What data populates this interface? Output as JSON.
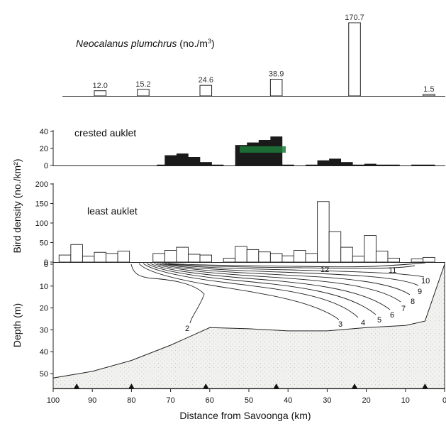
{
  "chart_data": {
    "type": "bar",
    "xlabel": "Distance from Savoonga (km)",
    "xlim": [
      100,
      0
    ],
    "x_ticks": [
      "100",
      "90",
      "80",
      "70",
      "60",
      "50",
      "40",
      "30",
      "20",
      "10",
      "0"
    ],
    "shared_ylabel": "Bird density (no./km²)",
    "panels": [
      {
        "name": "neocalanus",
        "title_species": "Neocalanus plumchrus",
        "title_units_prefix": " (no./m",
        "title_units_sup": "3",
        "title_units_suffix": ")",
        "samples": [
          {
            "x": 88,
            "value": 12.0,
            "label": "12.0"
          },
          {
            "x": 77,
            "value": 15.2,
            "label": "15.2"
          },
          {
            "x": 61,
            "value": 24.6,
            "label": "24.6"
          },
          {
            "x": 43,
            "value": 38.9,
            "label": "38.9"
          },
          {
            "x": 23,
            "value": 170.7,
            "label": "170.7"
          },
          {
            "x": 4,
            "value": 1.5,
            "label": "1.5"
          }
        ]
      },
      {
        "name": "crested-auklet",
        "title": "crested auklet",
        "ylim": [
          0,
          40
        ],
        "y_ticks": [
          "0",
          "20",
          "40"
        ],
        "values": [
          {
            "x": 72,
            "v": 1
          },
          {
            "x": 70,
            "v": 12
          },
          {
            "x": 67,
            "v": 14
          },
          {
            "x": 64,
            "v": 10
          },
          {
            "x": 61,
            "v": 4
          },
          {
            "x": 58,
            "v": 1
          },
          {
            "x": 52,
            "v": 24
          },
          {
            "x": 49,
            "v": 27
          },
          {
            "x": 46,
            "v": 30
          },
          {
            "x": 43,
            "v": 34
          },
          {
            "x": 40,
            "v": 1
          },
          {
            "x": 34,
            "v": 1
          },
          {
            "x": 31,
            "v": 6
          },
          {
            "x": 28,
            "v": 8
          },
          {
            "x": 25,
            "v": 4
          },
          {
            "x": 22,
            "v": 1
          },
          {
            "x": 19,
            "v": 2
          },
          {
            "x": 16,
            "v": 1
          },
          {
            "x": 13,
            "v": 1
          },
          {
            "x": 7,
            "v": 1
          },
          {
            "x": 4,
            "v": 1
          }
        ]
      },
      {
        "name": "least-auklet",
        "title": "least auklet",
        "ylim": [
          0,
          200
        ],
        "y_ticks": [
          "0",
          "50",
          "100",
          "150",
          "200"
        ],
        "values": [
          {
            "x": 97,
            "v": 18
          },
          {
            "x": 94,
            "v": 45
          },
          {
            "x": 91,
            "v": 15
          },
          {
            "x": 88,
            "v": 25
          },
          {
            "x": 85,
            "v": 22
          },
          {
            "x": 82,
            "v": 28
          },
          {
            "x": 73,
            "v": 22
          },
          {
            "x": 70,
            "v": 30
          },
          {
            "x": 67,
            "v": 38
          },
          {
            "x": 64,
            "v": 20
          },
          {
            "x": 61,
            "v": 18
          },
          {
            "x": 55,
            "v": 10
          },
          {
            "x": 52,
            "v": 40
          },
          {
            "x": 49,
            "v": 32
          },
          {
            "x": 46,
            "v": 26
          },
          {
            "x": 43,
            "v": 22
          },
          {
            "x": 40,
            "v": 16
          },
          {
            "x": 37,
            "v": 30
          },
          {
            "x": 34,
            "v": 22
          },
          {
            "x": 31,
            "v": 155
          },
          {
            "x": 28,
            "v": 78
          },
          {
            "x": 25,
            "v": 38
          },
          {
            "x": 22,
            "v": 15
          },
          {
            "x": 19,
            "v": 68
          },
          {
            "x": 16,
            "v": 28
          },
          {
            "x": 13,
            "v": 10
          },
          {
            "x": 7,
            "v": 8
          },
          {
            "x": 4,
            "v": 12
          }
        ]
      },
      {
        "name": "depth-section",
        "ylabel": "Depth (m)",
        "ylim": [
          0,
          55
        ],
        "y_ticks": [
          "0",
          "10",
          "20",
          "30",
          "40",
          "50"
        ],
        "contour_labels": [
          "2",
          "3",
          "4",
          "5",
          "6",
          "7",
          "8",
          "9",
          "10",
          "11",
          "12"
        ],
        "seafloor": [
          [
            100,
            52
          ],
          [
            90,
            49
          ],
          [
            80,
            44
          ],
          [
            70,
            37
          ],
          [
            60,
            29
          ],
          [
            50,
            29.5
          ],
          [
            40,
            30.5
          ],
          [
            30,
            30.5
          ],
          [
            20,
            29
          ],
          [
            10,
            28
          ],
          [
            5,
            26
          ],
          [
            0,
            0
          ]
        ],
        "stations": [
          94,
          80,
          61,
          43,
          23,
          5
        ]
      }
    ]
  }
}
